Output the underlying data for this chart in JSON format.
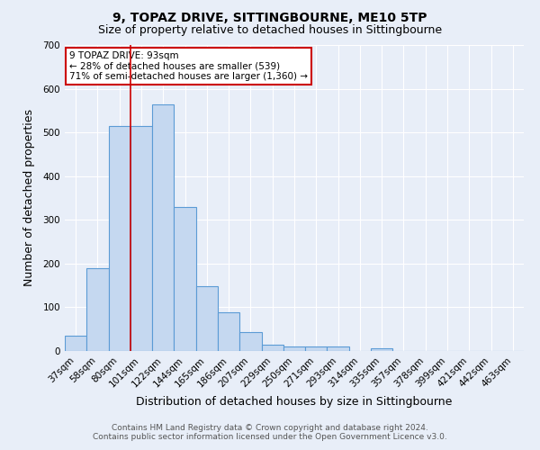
{
  "title": "9, TOPAZ DRIVE, SITTINGBOURNE, ME10 5TP",
  "subtitle": "Size of property relative to detached houses in Sittingbourne",
  "xlabel": "Distribution of detached houses by size in Sittingbourne",
  "ylabel": "Number of detached properties",
  "categories": [
    "37sqm",
    "58sqm",
    "80sqm",
    "101sqm",
    "122sqm",
    "144sqm",
    "165sqm",
    "186sqm",
    "207sqm",
    "229sqm",
    "250sqm",
    "271sqm",
    "293sqm",
    "314sqm",
    "335sqm",
    "357sqm",
    "378sqm",
    "399sqm",
    "421sqm",
    "442sqm",
    "463sqm"
  ],
  "values": [
    35,
    190,
    515,
    515,
    565,
    330,
    148,
    88,
    43,
    15,
    10,
    10,
    10,
    0,
    7,
    0,
    0,
    0,
    0,
    0,
    0
  ],
  "bar_color": "#c5d8f0",
  "bar_edge_color": "#5b9bd5",
  "vline_color": "#cc0000",
  "vline_x_index": 2.5,
  "annotation_text": "9 TOPAZ DRIVE: 93sqm\n← 28% of detached houses are smaller (539)\n71% of semi-detached houses are larger (1,360) →",
  "annotation_box_color": "#ffffff",
  "annotation_box_edge_color": "#cc0000",
  "ylim": [
    0,
    700
  ],
  "footer": "Contains HM Land Registry data © Crown copyright and database right 2024.\nContains public sector information licensed under the Open Government Licence v3.0.",
  "background_color": "#e8eef8",
  "plot_background_color": "#e8eef8",
  "grid_color": "#ffffff",
  "title_fontsize": 10,
  "subtitle_fontsize": 9,
  "xlabel_fontsize": 9,
  "ylabel_fontsize": 9,
  "tick_fontsize": 7.5,
  "footer_fontsize": 6.5
}
